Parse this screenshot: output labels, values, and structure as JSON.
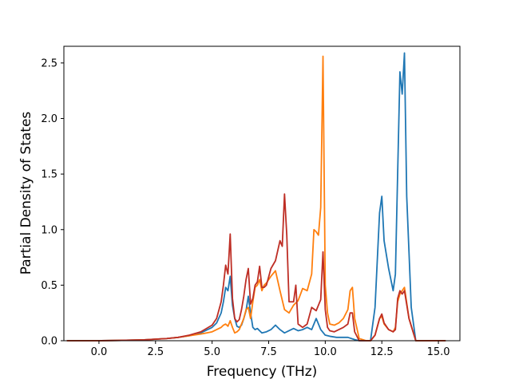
{
  "chart_data": {
    "type": "line",
    "title": "",
    "xlabel": "Frequency (THz)",
    "ylabel": "Partial Density of States",
    "xlim": [
      -1.55,
      15.95
    ],
    "ylim": [
      0,
      2.65
    ],
    "xticks": [
      0.0,
      2.5,
      5.0,
      7.5,
      10.0,
      12.5,
      15.0
    ],
    "xtick_labels": [
      "0.0",
      "2.5",
      "5.0",
      "7.5",
      "10.0",
      "12.5",
      "15.0"
    ],
    "yticks": [
      0.0,
      0.5,
      1.0,
      1.5,
      2.0,
      2.5
    ],
    "ytick_labels": [
      "0.0",
      "0.5",
      "1.0",
      "1.5",
      "2.0",
      "2.5"
    ],
    "grid": false,
    "legend": "none",
    "series": [
      {
        "color": "#1f77b4",
        "x": [
          -1.4,
          0.0,
          1.0,
          2.0,
          3.0,
          3.5,
          4.0,
          4.5,
          5.0,
          5.2,
          5.4,
          5.5,
          5.6,
          5.7,
          5.8,
          5.9,
          6.0,
          6.1,
          6.2,
          6.3,
          6.4,
          6.5,
          6.6,
          6.7,
          6.8,
          6.9,
          7.0,
          7.2,
          7.4,
          7.6,
          7.8,
          8.0,
          8.2,
          8.4,
          8.6,
          8.8,
          9.0,
          9.2,
          9.4,
          9.6,
          9.8,
          10.0,
          10.2,
          10.5,
          11.0,
          11.3,
          11.5,
          11.8,
          12.0,
          12.2,
          12.4,
          12.5,
          12.6,
          12.8,
          13.0,
          13.1,
          13.3,
          13.4,
          13.5,
          13.6,
          13.7,
          13.8,
          14.0,
          14.2,
          14.5,
          15.0,
          15.3
        ],
        "y": [
          0.0,
          0.0,
          0.003,
          0.008,
          0.02,
          0.03,
          0.045,
          0.07,
          0.12,
          0.16,
          0.25,
          0.35,
          0.48,
          0.45,
          0.58,
          0.32,
          0.2,
          0.13,
          0.12,
          0.14,
          0.2,
          0.27,
          0.4,
          0.25,
          0.12,
          0.1,
          0.11,
          0.07,
          0.08,
          0.1,
          0.14,
          0.1,
          0.07,
          0.09,
          0.11,
          0.09,
          0.1,
          0.12,
          0.1,
          0.2,
          0.1,
          0.05,
          0.04,
          0.03,
          0.03,
          0.01,
          0.0,
          0.0,
          0.0,
          0.3,
          1.15,
          1.3,
          0.9,
          0.65,
          0.45,
          0.6,
          2.42,
          2.22,
          2.59,
          1.3,
          0.8,
          0.3,
          0.0,
          0.0,
          0.0,
          0.0,
          0.0
        ]
      },
      {
        "color": "#ff7f0e",
        "x": [
          -1.4,
          0.0,
          1.0,
          2.0,
          3.0,
          3.5,
          4.0,
          4.5,
          5.0,
          5.2,
          5.4,
          5.5,
          5.6,
          5.7,
          5.8,
          5.9,
          6.0,
          6.1,
          6.2,
          6.3,
          6.4,
          6.5,
          6.6,
          6.7,
          6.8,
          6.9,
          7.0,
          7.1,
          7.2,
          7.3,
          7.4,
          7.6,
          7.8,
          8.0,
          8.2,
          8.4,
          8.6,
          8.8,
          9.0,
          9.2,
          9.4,
          9.5,
          9.6,
          9.7,
          9.8,
          9.9,
          10.0,
          10.1,
          10.2,
          10.4,
          10.6,
          10.8,
          11.0,
          11.1,
          11.2,
          11.3,
          11.5,
          11.8,
          12.0,
          12.2,
          12.4,
          12.5,
          12.6,
          12.8,
          13.0,
          13.1,
          13.2,
          13.3,
          13.5,
          13.7,
          14.0,
          14.5,
          15.0,
          15.3
        ],
        "y": [
          0.0,
          0.0,
          0.003,
          0.008,
          0.02,
          0.03,
          0.045,
          0.06,
          0.08,
          0.1,
          0.12,
          0.14,
          0.15,
          0.13,
          0.18,
          0.12,
          0.07,
          0.08,
          0.1,
          0.15,
          0.2,
          0.28,
          0.3,
          0.2,
          0.35,
          0.48,
          0.5,
          0.55,
          0.45,
          0.5,
          0.52,
          0.58,
          0.63,
          0.45,
          0.28,
          0.25,
          0.32,
          0.36,
          0.47,
          0.45,
          0.6,
          1.0,
          0.98,
          0.95,
          1.2,
          2.56,
          0.5,
          0.25,
          0.15,
          0.14,
          0.16,
          0.2,
          0.28,
          0.45,
          0.48,
          0.2,
          0.02,
          0.0,
          0.0,
          0.05,
          0.2,
          0.22,
          0.15,
          0.1,
          0.08,
          0.12,
          0.35,
          0.42,
          0.48,
          0.2,
          0.0,
          0.0,
          0.0,
          0.0
        ]
      },
      {
        "color": "#be2e25",
        "x": [
          -1.4,
          0.0,
          1.0,
          2.0,
          3.0,
          3.5,
          4.0,
          4.5,
          5.0,
          5.2,
          5.4,
          5.5,
          5.6,
          5.7,
          5.8,
          5.9,
          6.0,
          6.1,
          6.2,
          6.3,
          6.4,
          6.5,
          6.6,
          6.7,
          6.8,
          6.9,
          7.0,
          7.1,
          7.2,
          7.3,
          7.4,
          7.6,
          7.8,
          8.0,
          8.1,
          8.2,
          8.3,
          8.4,
          8.6,
          8.7,
          8.8,
          9.0,
          9.2,
          9.4,
          9.6,
          9.8,
          9.9,
          10.0,
          10.1,
          10.2,
          10.4,
          10.6,
          10.8,
          11.0,
          11.1,
          11.2,
          11.3,
          11.5,
          11.8,
          12.0,
          12.2,
          12.4,
          12.5,
          12.6,
          12.8,
          13.0,
          13.1,
          13.2,
          13.3,
          13.4,
          13.5,
          13.7,
          14.0,
          14.5,
          15.0,
          15.3
        ],
        "y": [
          0.0,
          0.0,
          0.003,
          0.008,
          0.02,
          0.03,
          0.05,
          0.08,
          0.14,
          0.2,
          0.35,
          0.5,
          0.68,
          0.6,
          0.96,
          0.38,
          0.2,
          0.17,
          0.19,
          0.28,
          0.4,
          0.55,
          0.65,
          0.33,
          0.38,
          0.5,
          0.53,
          0.67,
          0.48,
          0.48,
          0.5,
          0.65,
          0.72,
          0.9,
          0.85,
          1.32,
          0.95,
          0.35,
          0.35,
          0.5,
          0.15,
          0.12,
          0.15,
          0.3,
          0.27,
          0.37,
          0.8,
          0.28,
          0.12,
          0.09,
          0.08,
          0.1,
          0.12,
          0.15,
          0.25,
          0.25,
          0.08,
          0.0,
          0.0,
          0.0,
          0.05,
          0.2,
          0.24,
          0.16,
          0.1,
          0.08,
          0.1,
          0.38,
          0.45,
          0.42,
          0.45,
          0.2,
          0.0,
          0.0,
          0.0,
          0.0
        ]
      }
    ]
  }
}
